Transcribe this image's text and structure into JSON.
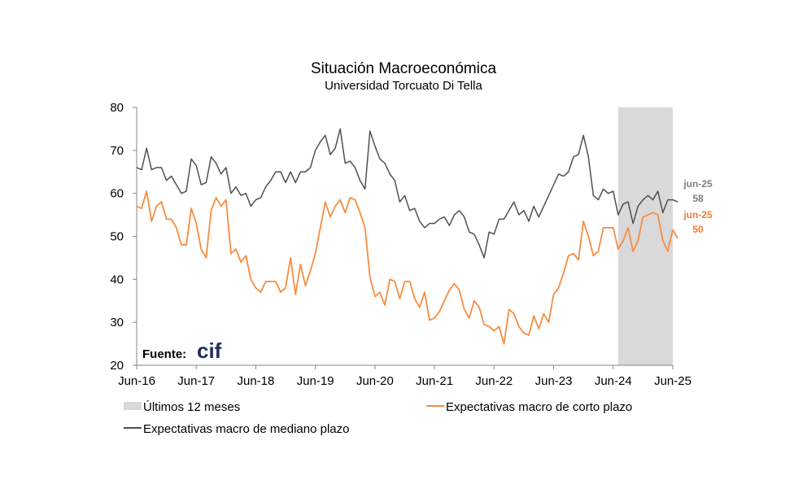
{
  "chart_data": {
    "type": "line",
    "title": "Situación Macroeconómica",
    "subtitle": "Universidad Torcuato Di Tella",
    "ylim": [
      20,
      80
    ],
    "yticks": [
      20,
      30,
      40,
      50,
      60,
      70,
      80
    ],
    "xlim": [
      0,
      108
    ],
    "xticks": [
      {
        "pos": 0,
        "label": "Jun-16"
      },
      {
        "pos": 12,
        "label": "Jun-17"
      },
      {
        "pos": 24,
        "label": "Jun-18"
      },
      {
        "pos": 36,
        "label": "Jun-19"
      },
      {
        "pos": 48,
        "label": "Jun-20"
      },
      {
        "pos": 60,
        "label": "Jun-21"
      },
      {
        "pos": 72,
        "label": "Jun-22"
      },
      {
        "pos": 84,
        "label": "Jun-23"
      },
      {
        "pos": 96,
        "label": "Jun-24"
      },
      {
        "pos": 108,
        "label": "Jun-25"
      }
    ],
    "shade": {
      "from": 97,
      "to": 108,
      "label": "Últimos 12 meses",
      "color": "#d9d9d9"
    },
    "series": [
      {
        "name": "Expectativas macro de mediano plazo",
        "color": "#505050",
        "end_label": {
          "date": "jun-25",
          "value": "58"
        },
        "values": [
          66,
          65.5,
          70.5,
          65.5,
          66,
          66,
          63,
          64,
          62,
          60,
          60.5,
          68,
          66.5,
          62,
          62.5,
          68.5,
          67,
          64.5,
          66,
          60,
          61.5,
          59.5,
          60,
          57,
          58.5,
          59,
          61.5,
          63,
          65,
          65,
          62.5,
          65,
          62.5,
          65,
          65,
          66,
          70,
          72,
          73.5,
          69,
          70.5,
          75,
          67,
          67.5,
          66,
          63,
          61,
          74.5,
          71,
          68,
          67,
          64.5,
          63,
          58,
          59.5,
          56,
          56.5,
          53.5,
          52,
          53,
          53,
          54,
          54.5,
          52.5,
          55,
          56,
          54.5,
          51,
          50.5,
          48,
          45,
          51,
          50.5,
          54,
          54,
          56,
          58,
          55,
          56,
          53.5,
          57,
          54.5,
          57,
          59.5,
          62,
          64.5,
          64,
          65,
          68.5,
          69,
          73.5,
          68.5,
          59.5,
          58.5,
          61,
          60,
          60.5,
          55,
          57.5,
          58,
          53,
          57,
          58.5,
          59.5,
          58.5,
          60.5,
          55.5,
          58.5,
          58.5,
          58
        ]
      },
      {
        "name": "Expectativas macro de corto plazo",
        "color": "#f68d42",
        "end_label": {
          "date": "jun-25",
          "value": "50"
        },
        "values": [
          57,
          56.5,
          60.5,
          53.5,
          57,
          58,
          54,
          54,
          52,
          48,
          48,
          56.5,
          53,
          47,
          45,
          56,
          59,
          57,
          58.5,
          46,
          47,
          44,
          45.5,
          40,
          38,
          37,
          39.5,
          39.5,
          39.5,
          37,
          38,
          45,
          36.5,
          43.5,
          38.5,
          42,
          46,
          52,
          58,
          54.5,
          57,
          58.5,
          55.5,
          59,
          58.5,
          55.5,
          52,
          40.5,
          36,
          37,
          34,
          40,
          39.5,
          35.5,
          39.5,
          39.5,
          35.5,
          33.5,
          37,
          30.5,
          31,
          32.5,
          35,
          37.5,
          39,
          37.5,
          33,
          31,
          35,
          33.5,
          29.5,
          29,
          28,
          29,
          25,
          33,
          32,
          29,
          27.5,
          27,
          31.5,
          28.5,
          32,
          30,
          36.5,
          38,
          41.5,
          45.5,
          46,
          44.5,
          53.5,
          50,
          45.5,
          46.5,
          52,
          52,
          52,
          47,
          49,
          52,
          46.5,
          49,
          54.5,
          55,
          55.5,
          55,
          49,
          46.5,
          51.5,
          49.5
        ]
      }
    ]
  },
  "legend": {
    "shade_label": "Últimos 12 meses",
    "short_term_label": "Expectativas macro de corto plazo",
    "medium_term_label": "Expectativas macro de mediano plazo"
  },
  "source": {
    "label": "Fuente:",
    "logo_text": "cif"
  }
}
